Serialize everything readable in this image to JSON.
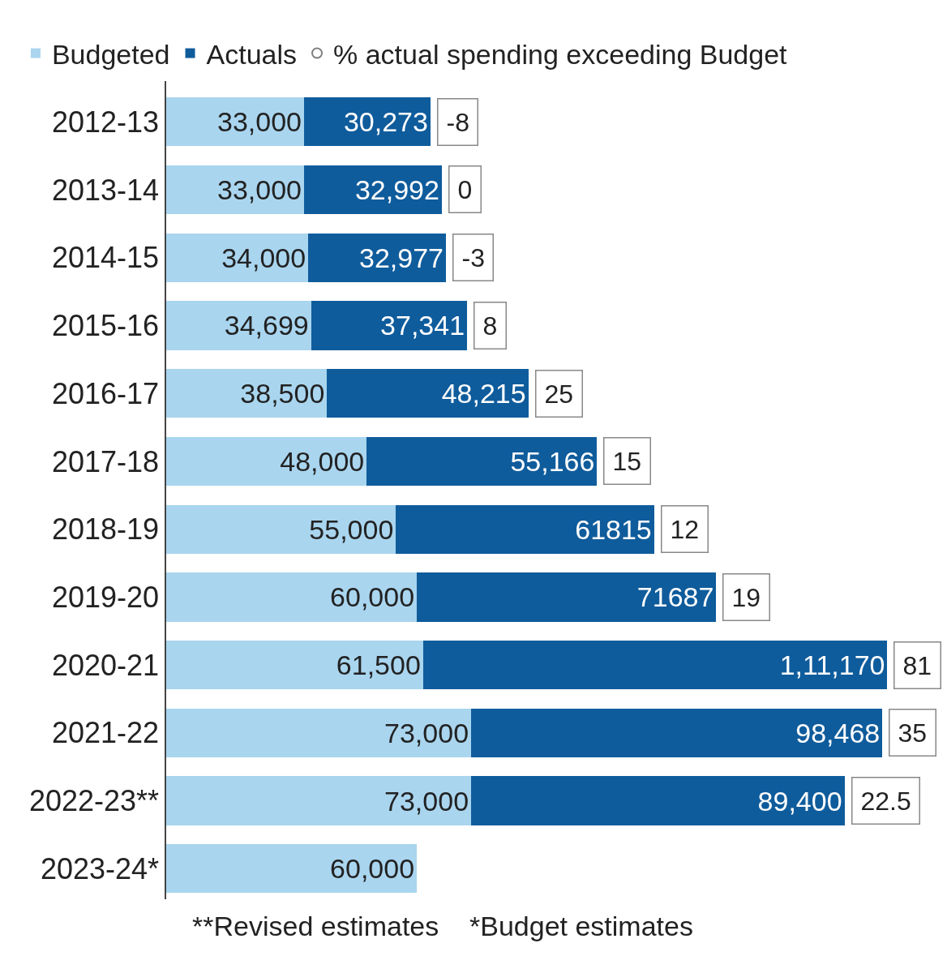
{
  "chart_data": {
    "type": "bar",
    "orientation": "horizontal",
    "stacked": true,
    "categories": [
      "2012-13",
      "2013-14",
      "2014-15",
      "2015-16",
      "2016-17",
      "2017-18",
      "2018-19",
      "2019-20",
      "2020-21",
      "2021-22",
      "2022-23**",
      "2023-24*"
    ],
    "series": [
      {
        "name": "Budgeted",
        "color": "#a9d5ef",
        "values": [
          33000,
          33000,
          34000,
          34699,
          38500,
          48000,
          55000,
          60000,
          61500,
          73000,
          73000,
          60000
        ],
        "value_labels": [
          "33,000",
          "33,000",
          "34,000",
          "34,699",
          "38,500",
          "48,000",
          "55,000",
          "60,000",
          "61,500",
          "73,000",
          "73,000",
          "60,000"
        ]
      },
      {
        "name": "Actuals",
        "color": "#0f5c9c",
        "values": [
          30273,
          32992,
          32977,
          37341,
          48215,
          55166,
          61815,
          71687,
          111170,
          98468,
          89400,
          null
        ],
        "value_labels": [
          "30,273",
          "32,992",
          "32,977",
          "37,341",
          "48,215",
          "55,166",
          "61815",
          "71687",
          "1,11,170",
          "98,468",
          "89,400",
          null
        ]
      },
      {
        "name": "% actual spending exceeding Budget",
        "type": "scatter",
        "marker": "circle",
        "color": "#808080",
        "values": [
          null,
          null,
          null,
          null,
          null,
          null,
          null,
          null,
          null,
          null,
          null,
          null
        ]
      }
    ],
    "xlim": [
      0,
      185000
    ],
    "tick_labels": "y",
    "legend": "top left",
    "annotations": [
      {
        "text": "-8",
        "x": 63273,
        "y": "2012-13"
      },
      {
        "text": "0",
        "x": 65992,
        "y": "2013-14"
      },
      {
        "text": "-3",
        "x": 66977,
        "y": "2014-15"
      },
      {
        "text": "8",
        "x": 72040,
        "y": "2015-16"
      },
      {
        "text": "25",
        "x": 86715,
        "y": "2016-17"
      },
      {
        "text": "15",
        "x": 103166,
        "y": "2017-18"
      },
      {
        "text": "12",
        "x": 116815,
        "y": "2018-19"
      },
      {
        "text": "19",
        "x": 131687,
        "y": "2019-20"
      },
      {
        "text": "81",
        "x": 172670,
        "y": "2020-21"
      },
      {
        "text": "35",
        "x": 171468,
        "y": "2021-22"
      },
      {
        "text": "22.5",
        "x": 162400,
        "y": "2022-23**"
      },
      "**Revised estimates    *Budget estimates"
    ]
  }
}
